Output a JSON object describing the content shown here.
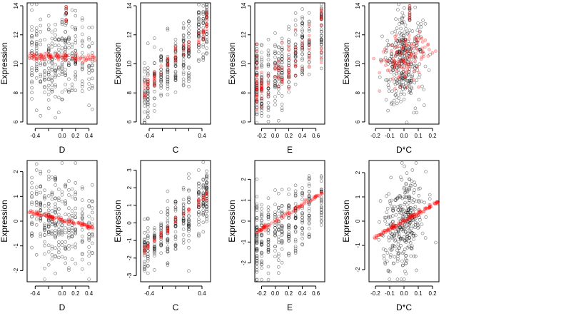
{
  "colors": {
    "observed": "#000000",
    "predicted": "#ff0000"
  },
  "chart_data": [
    {
      "type": "scatter",
      "xlabel": "D",
      "ylabel": "Expression",
      "xticks": [
        -0.4,
        -0.2,
        0.0,
        0.2,
        0.4
      ],
      "xtick_labels": [
        "-0.4",
        "",
        "0.0",
        "0.2",
        "0.4"
      ],
      "yticks": [
        6,
        8,
        10,
        12,
        14
      ],
      "ytick_labels": [
        "6",
        "8",
        "10",
        "12",
        "14"
      ],
      "xlim": [
        -0.52,
        0.52
      ],
      "ylim": [
        5.85,
        14.2
      ],
      "grid": false,
      "x_levels": [
        -0.45,
        -0.38,
        -0.32,
        -0.26,
        -0.2,
        -0.15,
        -0.1,
        -0.05,
        0.0,
        0.05,
        0.1,
        0.15,
        0.2,
        0.3,
        0.4,
        0.45
      ],
      "black": {
        "gen": "levels",
        "n": 300,
        "cx": 10.3,
        "sd": 1.6,
        "slope": -0.5,
        "seed": 11
      },
      "red": {
        "gen": "line",
        "n": 90,
        "a": 10.45,
        "b": -0.2,
        "sd": 0.15,
        "seed": 12
      },
      "clusters": [
        {
          "x": 0.06,
          "y": 13.35,
          "n": 12,
          "sd": 0.35,
          "red": true
        }
      ]
    },
    {
      "type": "scatter",
      "xlabel": "C",
      "ylabel": "Expression",
      "xticks": [
        -0.4,
        -0.2,
        0.0,
        0.2,
        0.4
      ],
      "xtick_labels": [
        "-0.4",
        "",
        "",
        "",
        "0.4"
      ],
      "yticks": [
        6,
        8,
        10,
        12,
        14
      ],
      "ytick_labels": [
        "6",
        "8",
        "10",
        "12",
        "14"
      ],
      "xlim": [
        -0.53,
        0.53
      ],
      "ylim": [
        5.85,
        14.2
      ],
      "grid": false,
      "x_levels": [
        -0.47,
        -0.42,
        -0.32,
        -0.22,
        -0.12,
        0.0,
        0.12,
        0.2,
        0.35,
        0.42,
        0.47
      ],
      "black": {
        "gen": "levels",
        "n": 320,
        "cx": 10.2,
        "sd": 1.1,
        "slope": 5.0,
        "seed": 21
      },
      "red": {
        "gen": "levels",
        "n": 60,
        "cx": 10.4,
        "sd": 0.35,
        "slope": 4.3,
        "seed": 22
      },
      "clusters": [
        {
          "x": 0.47,
          "y": 13.4,
          "n": 10,
          "sd": 0.3,
          "red": true
        }
      ]
    },
    {
      "type": "scatter",
      "xlabel": "E",
      "ylabel": "Expression",
      "xticks": [
        -0.2,
        0.0,
        0.2,
        0.4,
        0.6
      ],
      "xtick_labels": [
        "-0.2",
        "0.0",
        "0.2",
        "0.4",
        "0.6"
      ],
      "yticks": [
        6,
        8,
        10,
        12,
        14
      ],
      "ytick_labels": [
        "6",
        "8",
        "10",
        "12",
        "14"
      ],
      "xlim": [
        -0.3,
        0.73
      ],
      "ylim": [
        5.85,
        14.2
      ],
      "grid": false,
      "x_levels": [
        -0.27,
        -0.2,
        -0.1,
        0.0,
        0.05,
        0.1,
        0.2,
        0.3,
        0.4,
        0.5,
        0.68
      ],
      "black": {
        "gen": "levels",
        "n": 320,
        "cx": 10.2,
        "sd": 1.3,
        "slope": 4.0,
        "seed": 31
      },
      "red": {
        "gen": "levels",
        "n": 80,
        "cx": 10.0,
        "sd": 1.0,
        "slope": 4.0,
        "seed": 32
      },
      "clusters": [
        {
          "x": -0.27,
          "y": 9.5,
          "n": 25,
          "sd": 1.3,
          "red": true
        },
        {
          "x": 0.68,
          "y": 13.4,
          "n": 10,
          "sd": 0.3,
          "red": true
        }
      ]
    },
    {
      "type": "scatter",
      "xlabel": "D*C",
      "ylabel": "Expression",
      "xticks": [
        -0.2,
        -0.1,
        0.0,
        0.1,
        0.2
      ],
      "xtick_labels": [
        "-0.2",
        "-0.1",
        "0.0",
        "0.1",
        "0.2"
      ],
      "yticks": [
        6,
        8,
        10,
        12,
        14
      ],
      "ytick_labels": [
        "6",
        "8",
        "10",
        "12",
        "14"
      ],
      "xlim": [
        -0.245,
        0.245
      ],
      "ylim": [
        5.85,
        14.2
      ],
      "grid": false,
      "black": {
        "gen": "center",
        "n": 320,
        "cx": 10.2,
        "sdx": 0.07,
        "sd": 1.5,
        "slope": 3.0,
        "seed": 41
      },
      "red": {
        "gen": "center",
        "n": 120,
        "cx": 10.4,
        "sdx": 0.09,
        "sd": 0.9,
        "slope": 4.0,
        "seed": 42
      },
      "clusters": [
        {
          "x": 0.04,
          "y": 13.4,
          "n": 12,
          "sd": 0.3,
          "red": true
        }
      ]
    },
    {
      "type": "scatter",
      "xlabel": "D",
      "ylabel": "Expression",
      "xticks": [
        -0.4,
        -0.2,
        0.0,
        0.2,
        0.4
      ],
      "xtick_labels": [
        "-0.4",
        "",
        "0.0",
        "0.2",
        "0.4"
      ],
      "yticks": [
        -2,
        -1,
        0,
        1,
        2
      ],
      "ytick_labels": [
        "-2",
        "-1",
        "0",
        "1",
        "2"
      ],
      "xlim": [
        -0.52,
        0.52
      ],
      "ylim": [
        -2.45,
        2.45
      ],
      "grid": false,
      "x_levels": [
        -0.45,
        -0.38,
        -0.32,
        -0.26,
        -0.2,
        -0.15,
        -0.1,
        -0.05,
        0.0,
        0.05,
        0.1,
        0.15,
        0.2,
        0.3,
        0.4,
        0.45
      ],
      "black": {
        "gen": "levels",
        "n": 300,
        "cx": 0.0,
        "sd": 0.9,
        "slope": -0.7,
        "seed": 51
      },
      "red": {
        "gen": "line",
        "n": 90,
        "a": 0.05,
        "b": -0.65,
        "sd": 0.04,
        "seed": 52
      },
      "clusters": []
    },
    {
      "type": "scatter",
      "xlabel": "C",
      "ylabel": "Expression",
      "xticks": [
        -0.4,
        -0.2,
        0.0,
        0.2,
        0.4
      ],
      "xtick_labels": [
        "-0.4",
        "",
        "",
        "",
        "0.4"
      ],
      "yticks": [
        -3,
        -2,
        -1,
        0,
        1,
        2,
        3
      ],
      "ytick_labels": [
        "-3",
        "-2",
        "-1",
        "0",
        "1",
        "2",
        "3"
      ],
      "xlim": [
        -0.53,
        0.53
      ],
      "ylim": [
        -3.35,
        3.55
      ],
      "grid": false,
      "x_levels": [
        -0.47,
        -0.42,
        -0.32,
        -0.22,
        -0.12,
        0.0,
        0.12,
        0.2,
        0.35,
        0.42,
        0.47
      ],
      "black": {
        "gen": "levels",
        "n": 320,
        "cx": 0.0,
        "sd": 0.85,
        "slope": 3.4,
        "seed": 61
      },
      "red": {
        "gen": "levels",
        "n": 50,
        "cx": 0.05,
        "sd": 0.12,
        "slope": 3.3,
        "seed": 62
      },
      "clusters": []
    },
    {
      "type": "scatter",
      "xlabel": "E",
      "ylabel": "Expression",
      "xticks": [
        -0.2,
        0.0,
        0.2,
        0.4,
        0.6
      ],
      "xtick_labels": [
        "-0.2",
        "0.0",
        "0.2",
        "0.4",
        "0.6"
      ],
      "yticks": [
        -2,
        -1,
        0,
        1,
        2
      ],
      "ytick_labels": [
        "-2",
        "-1",
        "0",
        "1",
        "2"
      ],
      "xlim": [
        -0.3,
        0.73
      ],
      "ylim": [
        -2.9,
        2.9
      ],
      "grid": false,
      "x_levels": [
        -0.27,
        -0.2,
        -0.1,
        0.0,
        0.05,
        0.1,
        0.2,
        0.3,
        0.4,
        0.5,
        0.68
      ],
      "black": {
        "gen": "levels",
        "n": 300,
        "cx": 0.0,
        "sd": 0.85,
        "slope": 2.0,
        "seed": 71
      },
      "red": {
        "gen": "line",
        "n": 80,
        "a": 0.0,
        "b": 1.95,
        "sd": 0.05,
        "seed": 72
      },
      "clusters": [
        {
          "x": -0.27,
          "y": -0.8,
          "n": 25,
          "sd": 0.9,
          "red": false
        }
      ]
    },
    {
      "type": "scatter",
      "xlabel": "D*C",
      "ylabel": "Expression",
      "xticks": [
        -0.2,
        -0.1,
        0.0,
        0.1,
        0.2
      ],
      "xtick_labels": [
        "-0.2",
        "-0.1",
        "0.0",
        "0.1",
        "0.2"
      ],
      "yticks": [
        -2,
        -1,
        0,
        1,
        2
      ],
      "ytick_labels": [
        "-2",
        "-1",
        "0",
        "1",
        "2"
      ],
      "xlim": [
        -0.245,
        0.245
      ],
      "ylim": [
        -2.5,
        2.5
      ],
      "grid": false,
      "black": {
        "gen": "center",
        "n": 320,
        "cx": 0.0,
        "sdx": 0.07,
        "sd": 0.95,
        "slope": 3.0,
        "seed": 81
      },
      "red": {
        "gen": "line",
        "n": 110,
        "a": 0.0,
        "b": 3.3,
        "sd": 0.04,
        "seed": 82,
        "xmin": -0.21,
        "xmax": 0.24
      },
      "clusters": []
    }
  ]
}
